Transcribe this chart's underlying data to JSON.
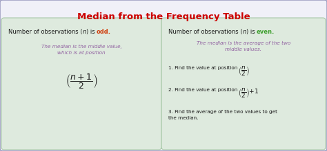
{
  "title": "Median from the Frequency Table",
  "title_color": "#cc0000",
  "title_fontsize": 9.5,
  "bg_color": "#f0f0f8",
  "border_color": "#9090b8",
  "box_bg_color": "#deeade",
  "box_border_color": "#a8c8a8",
  "left_sub_color": "#9060a0",
  "left_sub": "The median is the middle value,\nwhich is at position",
  "right_sub_color": "#9060a0",
  "right_sub": "The median is the average of the two\nmiddle values.",
  "step1": "1. Find the value at position",
  "step2": "2. Find the value at position",
  "step3": "3. Find the average of the two values to get\nthe median.",
  "black_color": "#1a1a1a",
  "odd_color": "#d04010",
  "even_color": "#40a030",
  "step_color": "#1a1a1a",
  "fs_header": 6.0,
  "fs_sub": 5.2,
  "fs_step": 5.2,
  "fs_formula_big": 9.0,
  "fs_formula_small": 6.5
}
